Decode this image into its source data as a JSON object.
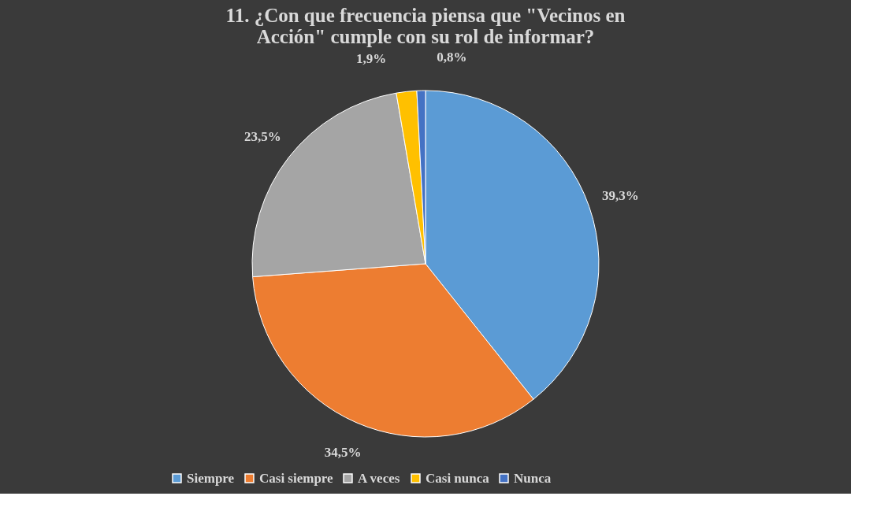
{
  "chart_data": {
    "type": "pie",
    "title": [
      "11. ¿Con que frecuencia piensa que \"Vecinos en",
      "Acción\" cumple con su rol de informar?"
    ],
    "categories": [
      "Siempre",
      "Casi siempre",
      "A veces",
      "Casi nunca",
      "Nunca"
    ],
    "values": [
      39.3,
      34.5,
      23.5,
      1.9,
      0.8
    ],
    "value_labels": [
      "39,3%",
      "34,5%",
      "23,5%",
      "1,9%",
      "0,8%"
    ],
    "colors": [
      "#5b9bd5",
      "#ed7d31",
      "#a5a5a5",
      "#ffc000",
      "#4472c4"
    ],
    "legend": "bottom"
  }
}
